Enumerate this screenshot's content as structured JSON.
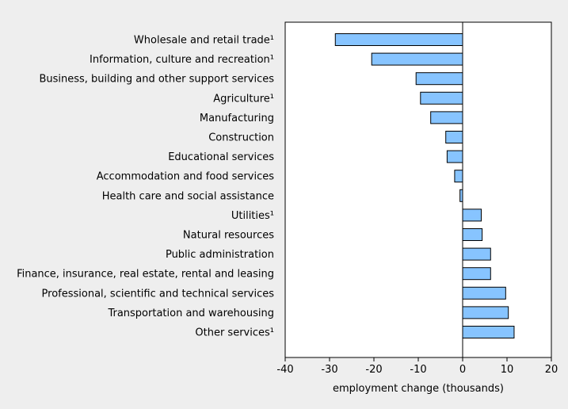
{
  "chart_data": {
    "type": "bar",
    "orientation": "horizontal",
    "categories": [
      "Wholesale and retail trade¹",
      "Information, culture and recreation¹",
      "Business, building and other support services",
      "Agriculture¹",
      "Manufacturing",
      "Construction",
      "Educational services",
      "Accommodation and food services",
      "Health care and social assistance",
      "Utilities¹",
      "Natural resources",
      "Public administration",
      "Finance, insurance, real estate, rental and leasing",
      "Professional, scientific and technical services",
      "Transportation and warehousing",
      "Other services¹"
    ],
    "values": [
      -28.7,
      -20.5,
      -10.5,
      -9.5,
      -7.2,
      -3.8,
      -3.5,
      -1.8,
      -0.6,
      4.2,
      4.4,
      6.3,
      6.3,
      9.7,
      10.3,
      11.6
    ],
    "title": "",
    "xlabel": "employment change (thousands)",
    "ylabel": "",
    "xlim": [
      -40,
      20
    ],
    "xticks": [
      -40,
      -30,
      -20,
      -10,
      0,
      10,
      20
    ],
    "xtick_labels": [
      "-40",
      "-30",
      "-20",
      "-10",
      "0",
      "10",
      "20"
    ],
    "grid": false,
    "legend": "none",
    "colors": {
      "bar_fill": "#87c4ff",
      "bar_stroke": "#000000",
      "plot_background": "#ffffff",
      "figure_background": "#eeeeee"
    }
  }
}
